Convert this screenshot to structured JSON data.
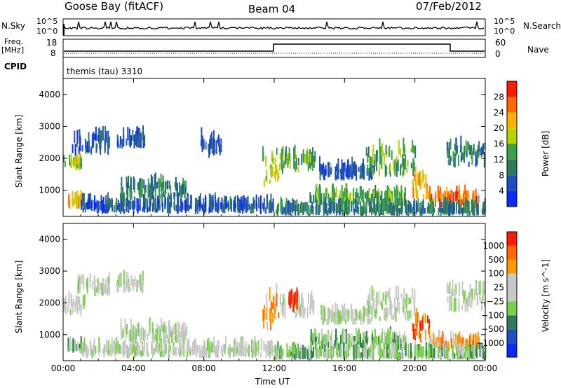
{
  "header": {
    "station": "Goose Bay (fitACF)",
    "beam": "Beam 04",
    "date": "07/Feb/2012"
  },
  "top_panels": {
    "nsky_label": "N.Sky",
    "nsky_ticks": [
      "10^5",
      "10^0"
    ],
    "nsearch_label": "N.Search",
    "nsearch_ticks": [
      "10^5",
      "10^0"
    ],
    "freq_label_1": "Freq.",
    "freq_label_2": "[MHz]",
    "freq_ticks": [
      "18",
      "8"
    ],
    "nave_label": "Nave",
    "nave_ticks": [
      "60",
      "0"
    ],
    "cpid_label": "CPID",
    "cpid_value": "themis (tau) 3310"
  },
  "chart_data": [
    {
      "type": "heatmap",
      "title": "",
      "xlabel": "Time UT",
      "ylabel": "Slant Range [km]",
      "x_ticks": [
        "00:00",
        "04:00",
        "08:00",
        "12:00",
        "16:00",
        "20:00",
        "00:00"
      ],
      "y_ticks": [
        "1000",
        "2000",
        "3000",
        "4000"
      ],
      "xlim_hours": [
        0,
        24
      ],
      "ylim_km": [
        180,
        4500
      ],
      "colorbar": {
        "label": "Power [dB]",
        "ticks": [
          "4",
          "8",
          "12",
          "16",
          "20",
          "24",
          "28"
        ],
        "colors": [
          "#0a2aff",
          "#1f4fbf",
          "#2f7a5a",
          "#3aa14a",
          "#b7d400",
          "#ffb000",
          "#ff6a00",
          "#ff1a00"
        ]
      },
      "regions": [
        {
          "t0": 0.0,
          "t1": 1.0,
          "r0": 1600,
          "r1": 1900,
          "level": 4
        },
        {
          "t0": 0.5,
          "t1": 2.6,
          "r0": 2100,
          "r1": 2600,
          "level": 1
        },
        {
          "t0": 3.0,
          "t1": 4.6,
          "r0": 2300,
          "r1": 2600,
          "level": 1
        },
        {
          "t0": 0.2,
          "t1": 1.1,
          "r0": 400,
          "r1": 600,
          "level": 5
        },
        {
          "t0": 1.0,
          "t1": 12.0,
          "r0": 250,
          "r1": 500,
          "level": 1
        },
        {
          "t0": 3.2,
          "t1": 7.0,
          "r0": 700,
          "r1": 1100,
          "level": 2
        },
        {
          "t0": 11.3,
          "t1": 12.3,
          "r0": 1100,
          "r1": 2200,
          "level": 4
        },
        {
          "t0": 12.3,
          "t1": 14.3,
          "r0": 1500,
          "r1": 2000,
          "level": 3
        },
        {
          "t0": 14.5,
          "t1": 17.6,
          "r0": 1300,
          "r1": 1600,
          "level": 1
        },
        {
          "t0": 17.2,
          "t1": 20.0,
          "r0": 1400,
          "r1": 2200,
          "level": 3
        },
        {
          "t0": 19.8,
          "t1": 20.8,
          "r0": 700,
          "r1": 1400,
          "level": 5
        },
        {
          "t0": 14.0,
          "t1": 19.5,
          "r0": 500,
          "r1": 800,
          "level": 3
        },
        {
          "t0": 20.8,
          "t1": 23.6,
          "r0": 450,
          "r1": 750,
          "level": 6
        },
        {
          "t0": 21.8,
          "t1": 24.0,
          "r0": 1700,
          "r1": 2300,
          "level": 2
        },
        {
          "t0": 7.8,
          "t1": 9.0,
          "r0": 2000,
          "r1": 2500,
          "level": 1
        },
        {
          "t0": 12.0,
          "t1": 24.0,
          "r0": 200,
          "r1": 350,
          "level": 2
        }
      ]
    },
    {
      "type": "heatmap",
      "title": "",
      "xlabel": "Time UT",
      "ylabel": "Slant Range [km]",
      "x_ticks": [
        "00:00",
        "04:00",
        "08:00",
        "12:00",
        "16:00",
        "20:00",
        "00:00"
      ],
      "y_ticks": [
        "1000",
        "2000",
        "3000",
        "4000"
      ],
      "xlim_hours": [
        0,
        24
      ],
      "ylim_km": [
        180,
        4500
      ],
      "colorbar": {
        "label": "Velocity [m s^-1]",
        "ticks": [
          "1000",
          "500",
          "100",
          "25",
          "−25",
          "−100",
          "−500",
          "−1000"
        ],
        "colors": [
          "#0a2aff",
          "#1f4fbf",
          "#2f7a5a",
          "#7ad04a",
          "#c8c8c8",
          "#c8c8c8",
          "#ff9a00",
          "#ff6a00",
          "#ff1a00"
        ]
      },
      "regions": [
        {
          "t0": 0.0,
          "t1": 1.2,
          "r0": 1600,
          "r1": 2000,
          "level": 4
        },
        {
          "t0": 0.8,
          "t1": 2.6,
          "r0": 2200,
          "r1": 2600,
          "level": 4
        },
        {
          "t0": 3.0,
          "t1": 4.6,
          "r0": 2300,
          "r1": 2600,
          "level": 4
        },
        {
          "t0": 0.2,
          "t1": 1.1,
          "r0": 400,
          "r1": 600,
          "level": 3
        },
        {
          "t0": 1.0,
          "t1": 12.0,
          "r0": 250,
          "r1": 500,
          "level": 4
        },
        {
          "t0": 3.2,
          "t1": 7.0,
          "r0": 700,
          "r1": 1100,
          "level": 4
        },
        {
          "t0": 11.3,
          "t1": 12.3,
          "r0": 1100,
          "r1": 2200,
          "level": 6
        },
        {
          "t0": 12.3,
          "t1": 14.3,
          "r0": 1500,
          "r1": 2000,
          "level": 4
        },
        {
          "t0": 12.7,
          "t1": 13.3,
          "r0": 1700,
          "r1": 2200,
          "level": 8
        },
        {
          "t0": 14.5,
          "t1": 17.6,
          "r0": 1300,
          "r1": 1600,
          "level": 4
        },
        {
          "t0": 17.2,
          "t1": 20.0,
          "r0": 1400,
          "r1": 2200,
          "level": 4
        },
        {
          "t0": 19.8,
          "t1": 20.8,
          "r0": 700,
          "r1": 1400,
          "level": 7
        },
        {
          "t0": 14.0,
          "t1": 19.5,
          "r0": 500,
          "r1": 800,
          "level": 3
        },
        {
          "t0": 20.8,
          "t1": 23.6,
          "r0": 450,
          "r1": 750,
          "level": 6
        },
        {
          "t0": 21.8,
          "t1": 24.0,
          "r0": 1700,
          "r1": 2300,
          "level": 4
        },
        {
          "t0": 12.0,
          "t1": 24.0,
          "r0": 200,
          "r1": 350,
          "level": 3
        }
      ]
    }
  ]
}
